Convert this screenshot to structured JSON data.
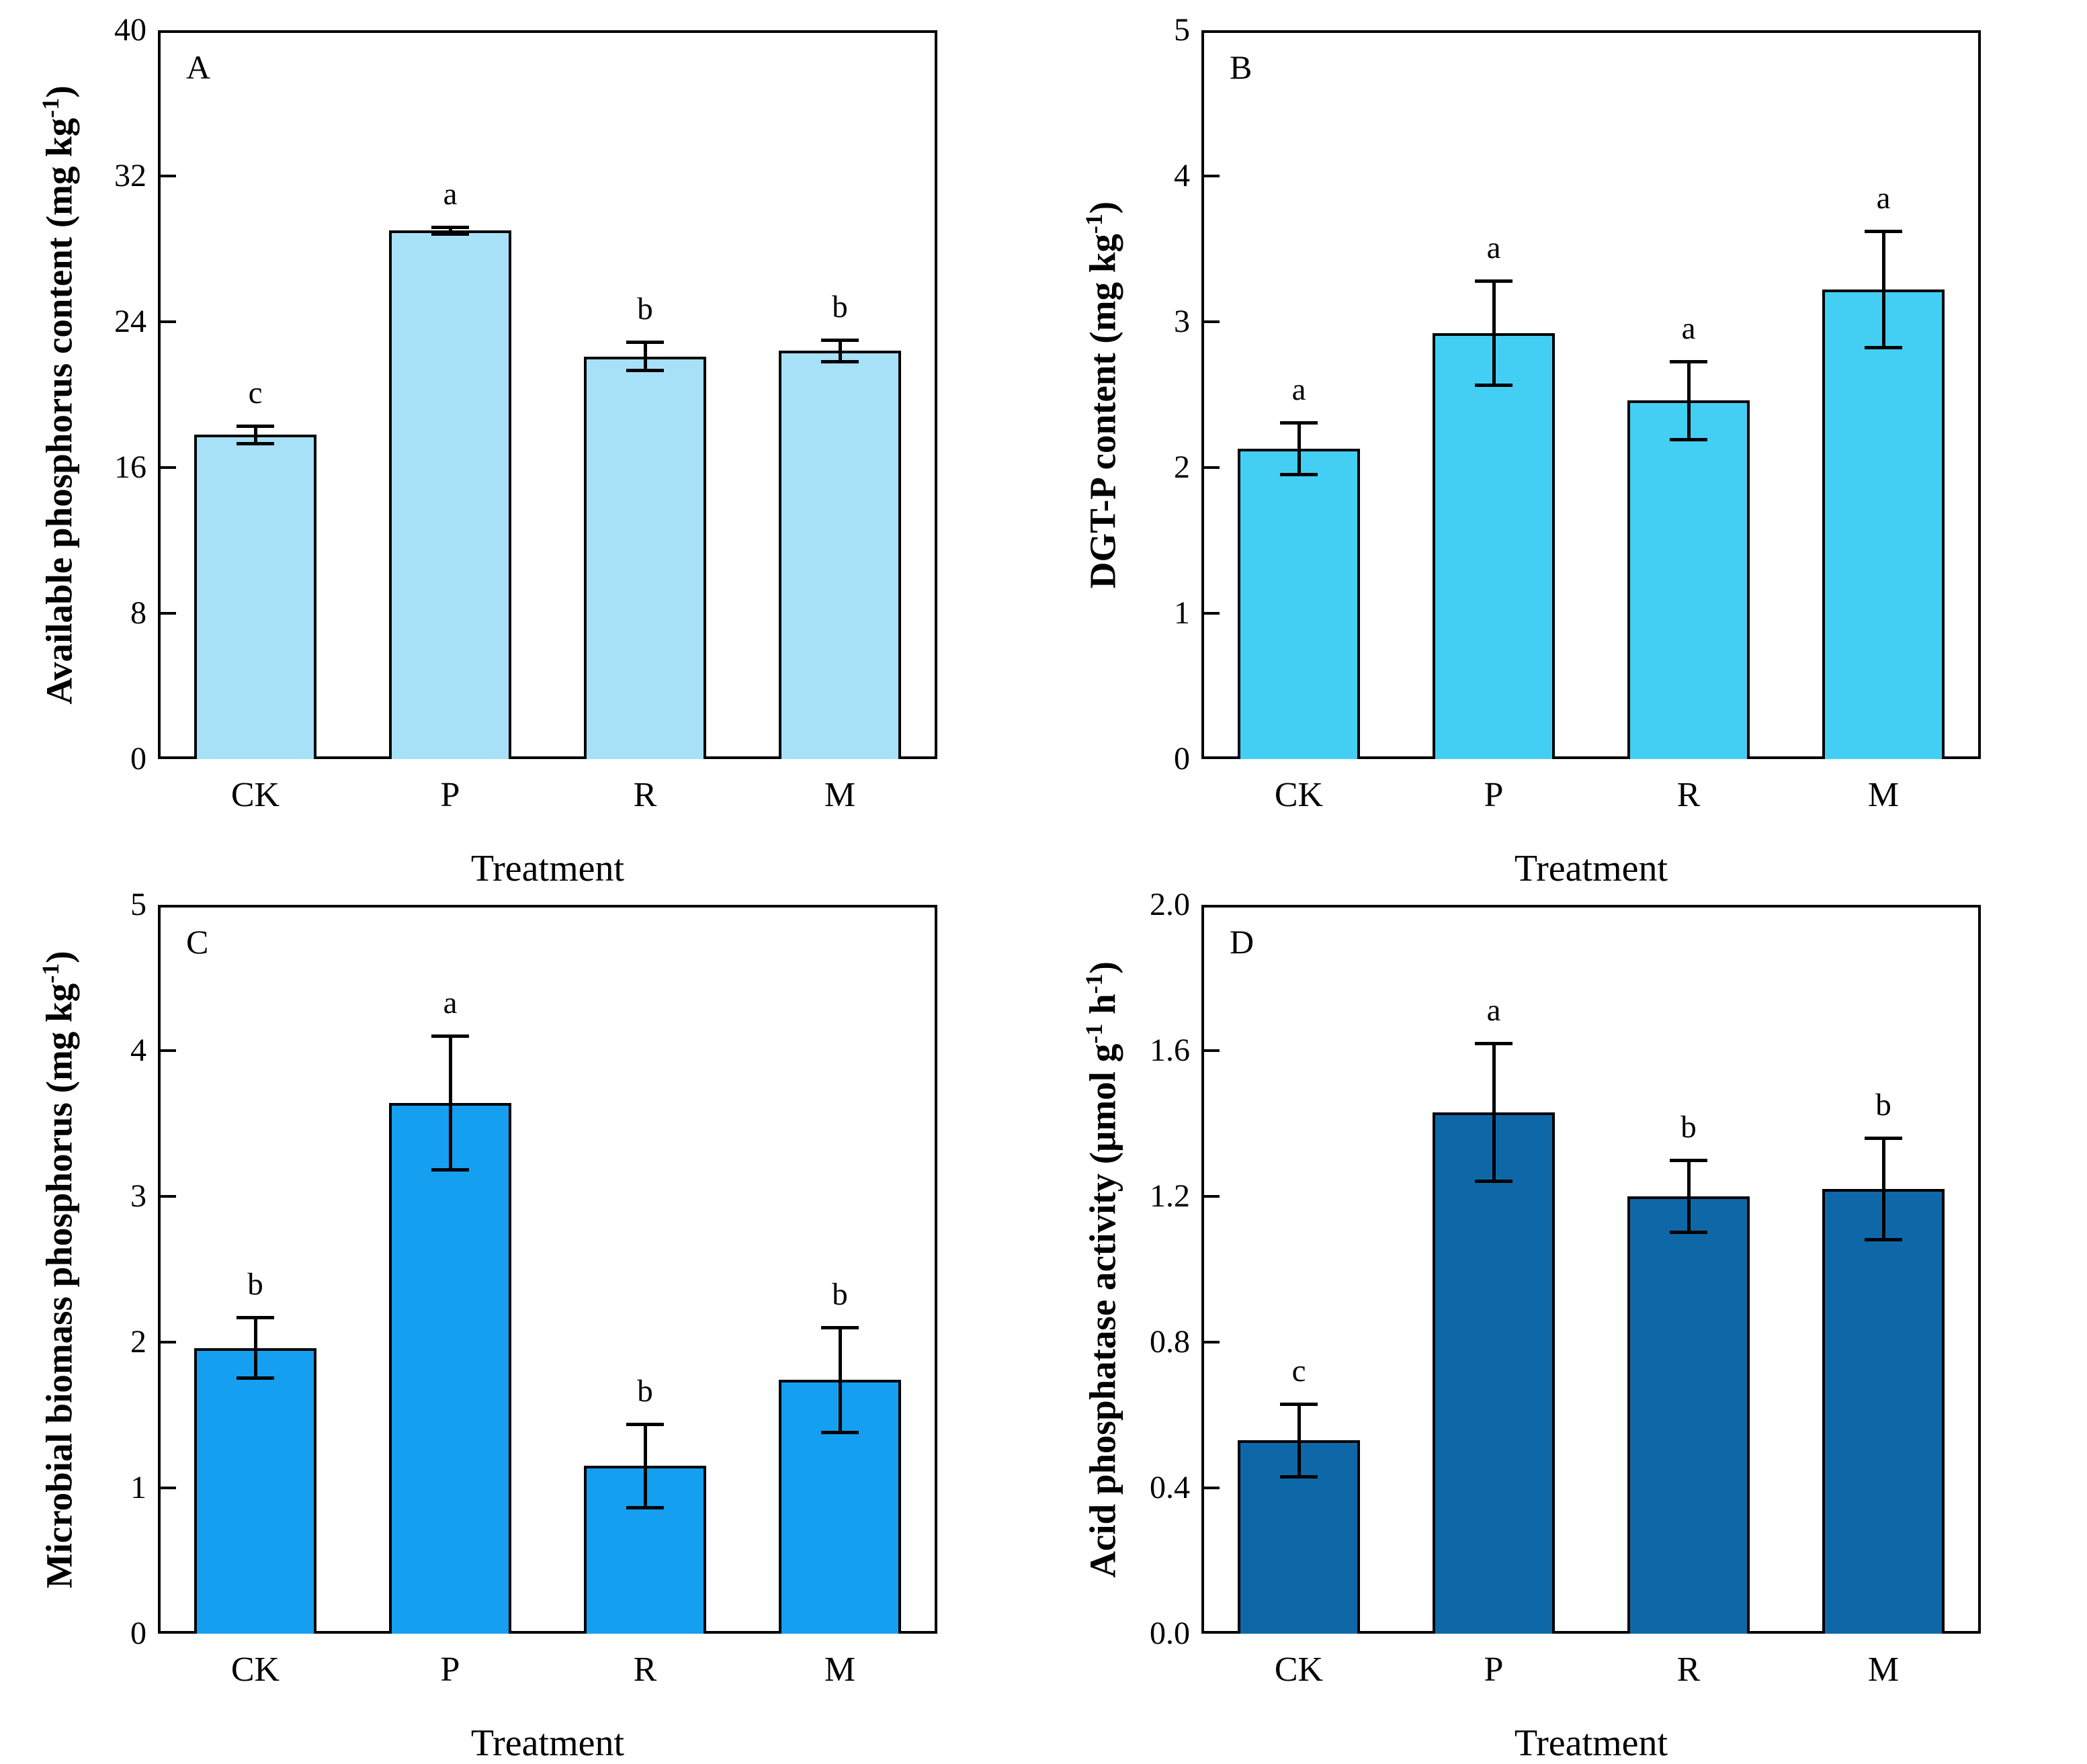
{
  "figure": {
    "background": "#ffffff",
    "axis_color": "#000000",
    "treatment_label": "Treatment",
    "categories": [
      "CK",
      "P",
      "R",
      "M"
    ]
  },
  "chart_data": [
    {
      "id": "A",
      "type": "bar",
      "panel_letter": "A",
      "ylabel": "Available phosphorus content (mg kg-1)",
      "ylabel_segments": [
        {
          "t": "Available phosphorus content (mg kg"
        },
        {
          "t": "-1",
          "sup": true
        },
        {
          "t": ")"
        }
      ],
      "xlabel": "Treatment",
      "categories": [
        "CK",
        "P",
        "R",
        "M"
      ],
      "values": [
        17.8,
        29.0,
        22.1,
        22.4
      ],
      "errors": [
        0.5,
        0.2,
        0.8,
        0.6
      ],
      "sig_letters": [
        "c",
        "a",
        "b",
        "b"
      ],
      "ylim": [
        0,
        40
      ],
      "yticks": [
        0,
        8,
        16,
        24,
        32,
        40
      ],
      "tick_decimals": 0,
      "bar_color": "#a6e1f7",
      "legend": "none",
      "grid": false
    },
    {
      "id": "B",
      "type": "bar",
      "panel_letter": "B",
      "ylabel": "DGT-P content (mg kg-1)",
      "ylabel_segments": [
        {
          "t": "DGT-P content (mg kg"
        },
        {
          "t": "-1",
          "sup": true
        },
        {
          "t": ")"
        }
      ],
      "xlabel": "Treatment",
      "categories": [
        "CK",
        "P",
        "R",
        "M"
      ],
      "values": [
        2.13,
        2.92,
        2.46,
        3.22
      ],
      "errors": [
        0.18,
        0.36,
        0.27,
        0.4
      ],
      "sig_letters": [
        "a",
        "a",
        "a",
        "a"
      ],
      "ylim": [
        0,
        5
      ],
      "yticks": [
        0,
        1,
        2,
        3,
        4,
        5
      ],
      "tick_decimals": 0,
      "bar_color": "#43cff4",
      "legend": "none",
      "grid": false
    },
    {
      "id": "C",
      "type": "bar",
      "panel_letter": "C",
      "ylabel": "Microbial biomass phosphorus (mg kg-1)",
      "ylabel_segments": [
        {
          "t": "Microbial biomass phosphorus (mg kg"
        },
        {
          "t": "-1",
          "sup": true
        },
        {
          "t": ")"
        }
      ],
      "xlabel": "Treatment",
      "categories": [
        "CK",
        "P",
        "R",
        "M"
      ],
      "values": [
        1.96,
        3.64,
        1.15,
        1.74
      ],
      "errors": [
        0.21,
        0.46,
        0.29,
        0.36
      ],
      "sig_letters": [
        "b",
        "a",
        "b",
        "b"
      ],
      "ylim": [
        0,
        5
      ],
      "yticks": [
        0,
        1,
        2,
        3,
        4,
        5
      ],
      "tick_decimals": 0,
      "bar_color": "#149ff1",
      "legend": "none",
      "grid": false
    },
    {
      "id": "D",
      "type": "bar",
      "panel_letter": "D",
      "ylabel": "Acid phosphatase activity (umol g-1 h-1)",
      "ylabel_segments": [
        {
          "t": "Acid phosphatase activity (μmol g"
        },
        {
          "t": "-1",
          "sup": true
        },
        {
          "t": " h"
        },
        {
          "t": "-1",
          "sup": true
        },
        {
          "t": ")"
        }
      ],
      "xlabel": "Treatment",
      "categories": [
        "CK",
        "P",
        "R",
        "M"
      ],
      "values": [
        0.53,
        1.43,
        1.2,
        1.22
      ],
      "errors": [
        0.1,
        0.19,
        0.1,
        0.14
      ],
      "sig_letters": [
        "c",
        "a",
        "b",
        "b"
      ],
      "ylim": [
        0,
        2.0
      ],
      "yticks": [
        0.0,
        0.4,
        0.8,
        1.2,
        1.6,
        2.0
      ],
      "tick_decimals": 1,
      "bar_color": "#0e68a8",
      "legend": "none",
      "grid": false
    }
  ]
}
